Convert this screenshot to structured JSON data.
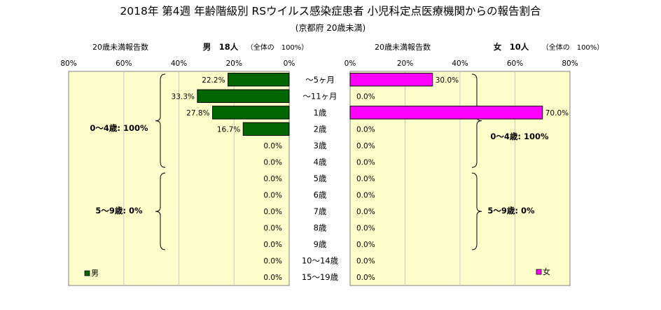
{
  "title": "2018年 第4週 年齢階級別 RSウイルス感染症患者 小児科定点医療機関からの報告割合",
  "subtitle": "(京都府 20歳未満)",
  "colors": {
    "male_fill": "#006600",
    "female_fill": "#ff00ff",
    "plot_bg": "#ffffcc",
    "plot_border": "#808080",
    "grid": "#c8c8c8",
    "bar_stroke": "#000000"
  },
  "chart_data": {
    "type": "bar",
    "orientation": "horizontal",
    "layout": "population-pyramid",
    "categories": [
      "～5ヶ月",
      "～11ヶ月",
      "1歳",
      "2歳",
      "3歳",
      "4歳",
      "5歳",
      "6歳",
      "7歳",
      "8歳",
      "9歳",
      "10～14歳",
      "15～19歳"
    ],
    "xlim": [
      0,
      80
    ],
    "ticks": [
      "0%",
      "20%",
      "40%",
      "60%",
      "80%"
    ],
    "grid": true,
    "left_panel": {
      "header_label": "20歳未満報告数",
      "header_total": "男　18人",
      "header_note": "（全体の　100%）",
      "legend": "男",
      "series": {
        "name": "男",
        "values": [
          22.2,
          33.3,
          27.8,
          16.7,
          0,
          0,
          0,
          0,
          0,
          0,
          0,
          0,
          0
        ]
      },
      "value_labels": [
        "22.2%",
        "33.3%",
        "27.8%",
        "16.7%",
        "0.0%",
        "0.0%",
        "0.0%",
        "0.0%",
        "0.0%",
        "0.0%",
        "0.0%",
        "0.0%",
        "0.0%"
      ],
      "group_labels": [
        "0～4歳: 100%",
        "5～9歳: 0%"
      ]
    },
    "right_panel": {
      "header_label": "20歳未満報告数",
      "header_total": "女　10人",
      "header_note": "（全体の　100%）",
      "legend": "女",
      "series": {
        "name": "女",
        "values": [
          30.0,
          0,
          70.0,
          0,
          0,
          0,
          0,
          0,
          0,
          0,
          0,
          0,
          0
        ]
      },
      "value_labels": [
        "30.0%",
        "0.0%",
        "70.0%",
        "0.0%",
        "0.0%",
        "0.0%",
        "0.0%",
        "0.0%",
        "0.0%",
        "0.0%",
        "0.0%",
        "0.0%",
        "0.0%"
      ],
      "group_labels": [
        "0～4歳: 100%",
        "5～9歳: 0%"
      ]
    }
  }
}
